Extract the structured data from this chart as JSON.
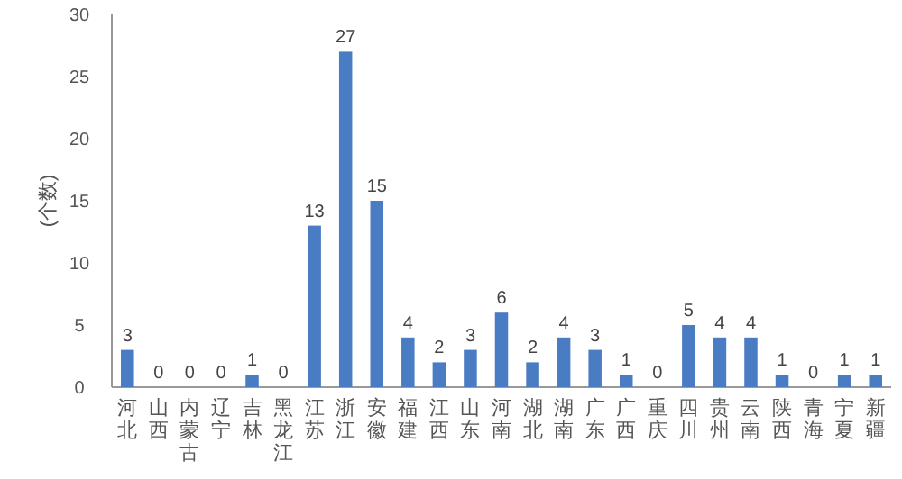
{
  "chart_data": {
    "type": "bar",
    "ylabel": "(个数)",
    "categories": [
      "河北",
      "山西",
      "内蒙古",
      "辽宁",
      "吉林",
      "黑龙江",
      "江苏",
      "浙江",
      "安徽",
      "福建",
      "江西",
      "山东",
      "河南",
      "湖北",
      "湖南",
      "广东",
      "广西",
      "重庆",
      "四川",
      "贵州",
      "云南",
      "陕西",
      "青海",
      "宁夏",
      "新疆"
    ],
    "values": [
      3,
      0,
      0,
      0,
      1,
      0,
      13,
      27,
      15,
      4,
      2,
      3,
      6,
      2,
      4,
      3,
      1,
      0,
      5,
      4,
      4,
      1,
      0,
      1,
      1
    ],
    "color": "#4a7cc4",
    "ylim": [
      0,
      30
    ],
    "yticks": [
      0,
      5,
      10,
      15,
      20,
      25,
      30
    ],
    "data_labels": true,
    "grid": false
  }
}
